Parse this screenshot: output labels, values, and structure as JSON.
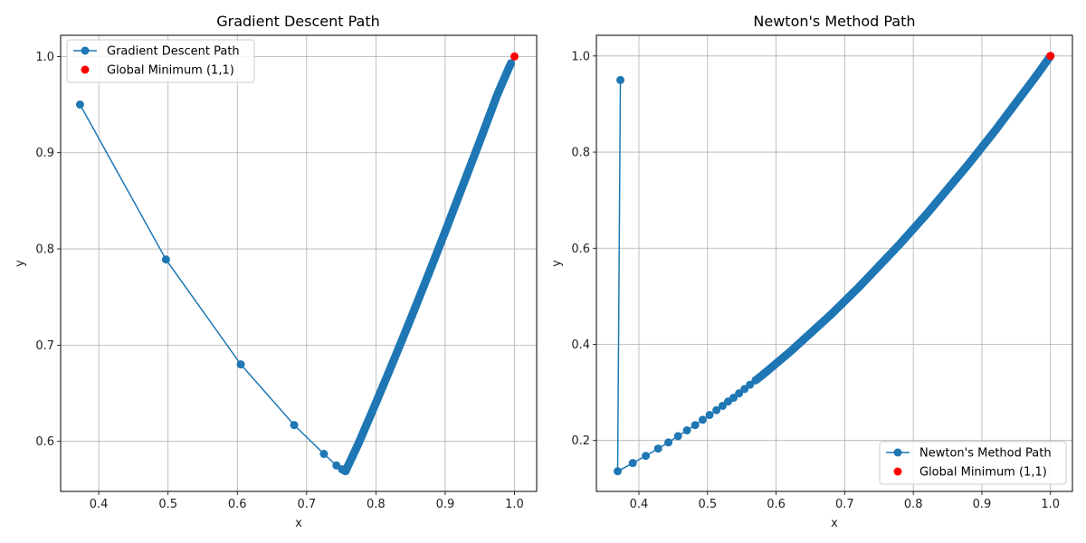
{
  "chart_data": [
    {
      "type": "line",
      "title": "Gradient Descent Path",
      "xlabel": "x",
      "ylabel": "y",
      "xlim": [
        0.345,
        1.032
      ],
      "ylim": [
        0.548,
        1.022
      ],
      "xticks": [
        "0.4",
        "0.5",
        "0.6",
        "0.7",
        "0.8",
        "0.9",
        "1.0"
      ],
      "yticks": [
        "0.6",
        "0.7",
        "0.8",
        "0.9",
        "1.0"
      ],
      "grid": true,
      "legend_position": "top-left",
      "series": [
        {
          "name": "Gradient Descent Path",
          "color": "#1f77b4",
          "marker": "circle",
          "x": [
            0.373,
            0.497,
            0.605,
            0.682,
            0.725,
            0.743,
            0.751,
            0.754,
            0.756,
            0.757,
            0.758,
            0.762,
            0.775,
            0.8,
            0.825,
            0.85,
            0.875,
            0.9,
            0.925,
            0.95,
            0.975,
            0.99,
            0.995
          ],
          "y": [
            0.95,
            0.789,
            0.68,
            0.617,
            0.587,
            0.575,
            0.571,
            0.57,
            0.569,
            0.57,
            0.572,
            0.578,
            0.598,
            0.64,
            0.683,
            0.727,
            0.772,
            0.818,
            0.865,
            0.912,
            0.96,
            0.985,
            0.993
          ]
        },
        {
          "name": "Global Minimum (1,1)",
          "type": "scatter",
          "color": "#ff0000",
          "x": [
            1.0
          ],
          "y": [
            1.0
          ]
        }
      ]
    },
    {
      "type": "line",
      "title": "Newton's Method Path",
      "xlabel": "x",
      "ylabel": "y",
      "xlim": [
        0.338,
        1.032
      ],
      "ylim": [
        0.094,
        1.043
      ],
      "xticks": [
        "0.4",
        "0.5",
        "0.6",
        "0.7",
        "0.8",
        "0.9",
        "1.0"
      ],
      "yticks": [
        "0.2",
        "0.4",
        "0.6",
        "0.8",
        "1.0"
      ],
      "grid": true,
      "legend_position": "bottom-right",
      "series": [
        {
          "name": "Newton's Method Path",
          "color": "#1f77b4",
          "marker": "circle",
          "x": [
            0.373,
            0.369,
            0.391,
            0.41,
            0.428,
            0.443,
            0.457,
            0.47,
            0.482,
            0.493,
            0.503,
            0.513,
            0.522,
            0.53,
            0.538,
            0.546,
            0.554,
            0.562,
            0.57,
            0.58,
            0.59,
            0.6,
            0.62,
            0.64,
            0.66,
            0.68,
            0.7,
            0.72,
            0.74,
            0.76,
            0.78,
            0.8,
            0.82,
            0.84,
            0.86,
            0.88,
            0.9,
            0.92,
            0.94,
            0.96,
            0.98,
            0.99,
            1.0
          ],
          "y": [
            0.95,
            0.136,
            0.153,
            0.168,
            0.183,
            0.196,
            0.209,
            0.221,
            0.232,
            0.243,
            0.253,
            0.263,
            0.272,
            0.281,
            0.289,
            0.298,
            0.307,
            0.316,
            0.325,
            0.336,
            0.348,
            0.36,
            0.384,
            0.41,
            0.436,
            0.462,
            0.49,
            0.518,
            0.548,
            0.578,
            0.608,
            0.64,
            0.672,
            0.706,
            0.74,
            0.774,
            0.81,
            0.846,
            0.884,
            0.922,
            0.96,
            0.98,
            1.0
          ]
        },
        {
          "name": "Global Minimum (1,1)",
          "type": "scatter",
          "color": "#ff0000",
          "x": [
            1.0
          ],
          "y": [
            1.0
          ]
        }
      ]
    }
  ]
}
